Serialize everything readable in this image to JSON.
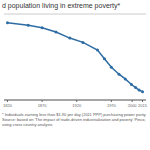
{
  "chart_data": {
    "type": "line",
    "title": "d population living in extreme poverty*",
    "annotations": [
      "* Individuals earning less than $1.90 per day (2011 PPP) purchasing power parity\nSource: based on 'The impact of trade-driven industrialization and poverty' Pinco,\nusing cross country analysis."
    ],
    "x": [
      1820,
      1850,
      1870,
      1890,
      1910,
      1929,
      1950,
      1960,
      1970,
      1981,
      1990,
      1999,
      2005,
      2010,
      2015
    ],
    "values": [
      89.9,
      87.0,
      84.0,
      79.0,
      72.0,
      67.0,
      58.0,
      48.0,
      38.0,
      30.0,
      24.5,
      18.0,
      14.5,
      11.5,
      9.6
    ],
    "color": "#2e6da4",
    "marker": "circle",
    "xlim": [
      1815,
      2020
    ],
    "ylim": [
      0,
      100
    ],
    "xticks": [
      1820,
      1870,
      1920,
      1970,
      2000,
      2015
    ],
    "yticks": [
      0,
      20,
      40,
      60,
      80,
      100
    ],
    "grid": true,
    "tick_labels": "x"
  }
}
